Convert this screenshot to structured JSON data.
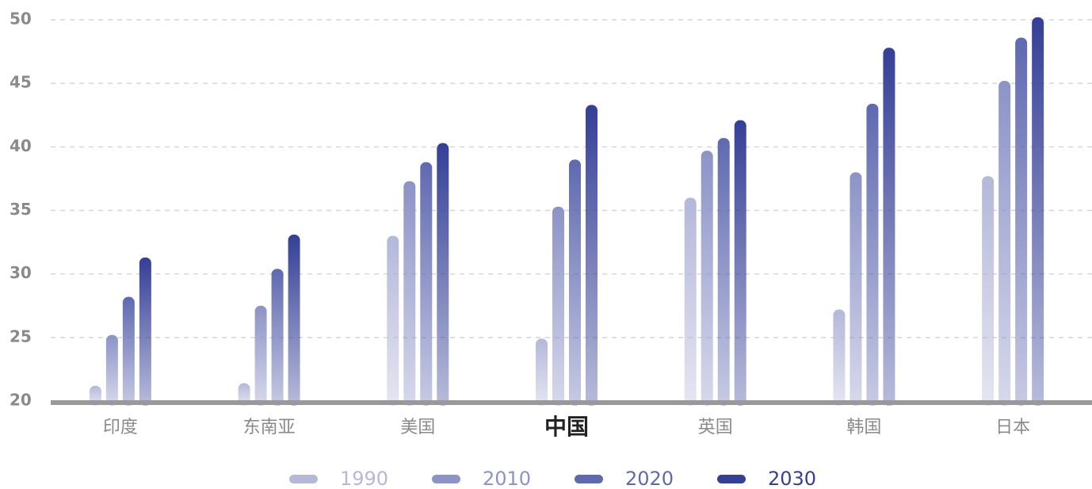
{
  "chart_data": {
    "type": "bar",
    "categories": [
      "印度",
      "东南亚",
      "美国",
      "中国",
      "英国",
      "韩国",
      "日本"
    ],
    "highlight_index": 3,
    "series": [
      {
        "name": "1990",
        "color": "#b4b8d9",
        "values": [
          21.2,
          21.4,
          33.0,
          24.9,
          36.0,
          27.2,
          37.7
        ]
      },
      {
        "name": "2010",
        "color": "#8c93c6",
        "values": [
          25.2,
          27.5,
          37.3,
          35.3,
          39.7,
          38.0,
          45.2
        ]
      },
      {
        "name": "2020",
        "color": "#5f69b0",
        "values": [
          28.2,
          30.4,
          38.8,
          39.0,
          40.7,
          43.4,
          48.6
        ]
      },
      {
        "name": "2030",
        "color": "#343f96",
        "values": [
          31.3,
          33.1,
          40.3,
          43.3,
          42.1,
          47.8,
          50.2
        ]
      }
    ],
    "ylim": [
      20,
      50
    ],
    "yticks": [
      20,
      25,
      30,
      35,
      40,
      45,
      50
    ],
    "grid": true,
    "legend": "bottom"
  }
}
